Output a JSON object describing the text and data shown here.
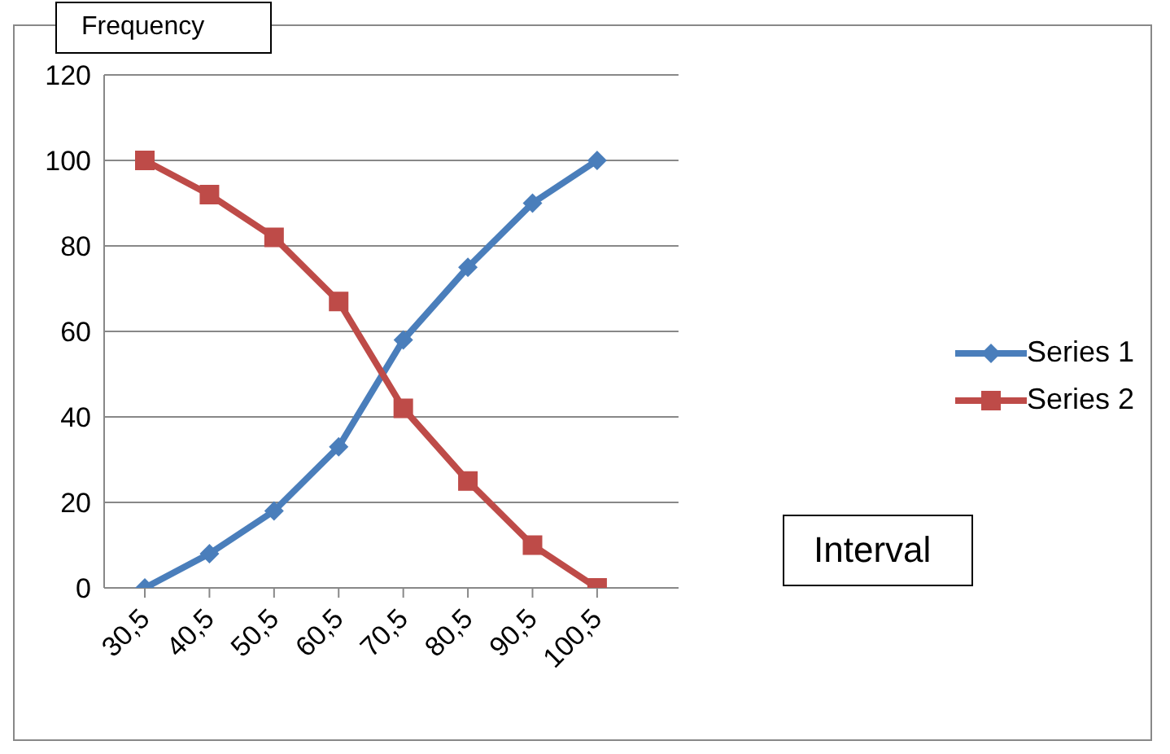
{
  "chart_data": {
    "type": "line",
    "xlabel": "Interval",
    "ylabel": "Frequency",
    "categories": [
      "30,5",
      "40,5",
      "50,5",
      "60,5",
      "70,5",
      "80,5",
      "90,5",
      "100,5"
    ],
    "series": [
      {
        "name": "Series 1",
        "color": "#4a7ebb",
        "marker": "diamond",
        "values": [
          0,
          8,
          18,
          33,
          58,
          75,
          90,
          100
        ]
      },
      {
        "name": "Series 2",
        "color": "#be4b48",
        "marker": "square",
        "values": [
          100,
          92,
          82,
          67,
          42,
          25,
          10,
          0
        ]
      }
    ],
    "ylim": [
      0,
      120
    ],
    "yticks": [
      0,
      20,
      40,
      60,
      80,
      100,
      120
    ],
    "grid": "y",
    "legend": "right",
    "line_style": "solid"
  }
}
